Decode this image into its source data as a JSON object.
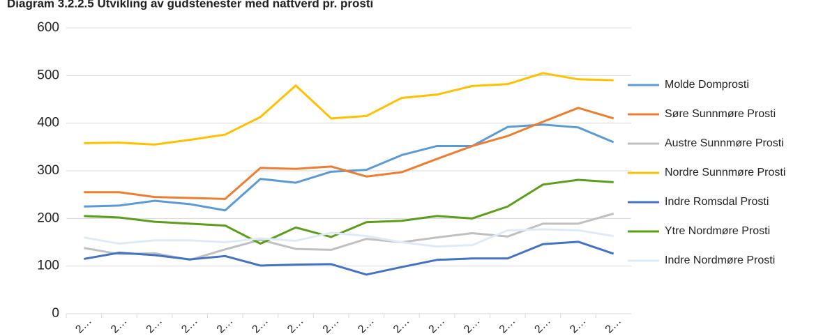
{
  "chart_data": {
    "type": "line",
    "title": "Diagram 3.2.2.5 Utvikling av gudstenester med nattverd pr. prosti",
    "categories": [
      "2…",
      "2…",
      "2…",
      "2…",
      "2…",
      "2…",
      "2…",
      "2…",
      "2…",
      "2…",
      "2…",
      "2…",
      "2…",
      "2…",
      "2…",
      "2…"
    ],
    "ylim": [
      0,
      600
    ],
    "yticks": [
      0,
      100,
      200,
      300,
      400,
      500,
      600
    ],
    "grid": true,
    "legend": "right",
    "series": [
      {
        "name": "Molde Domprosti",
        "color": "#5b9bd5",
        "values": [
          225,
          227,
          237,
          230,
          217,
          283,
          275,
          298,
          302,
          333,
          352,
          352,
          392,
          397,
          391,
          360
        ]
      },
      {
        "name": "Søre Sunnmøre Prosti",
        "color": "#ed7d31",
        "values": [
          255,
          255,
          245,
          243,
          241,
          306,
          304,
          309,
          288,
          297,
          325,
          352,
          373,
          403,
          432,
          410
        ]
      },
      {
        "name": "Austre Sunnmøre Prosti",
        "color": "#c0c0c0",
        "values": [
          138,
          125,
          127,
          113,
          135,
          155,
          136,
          134,
          157,
          150,
          160,
          169,
          162,
          189,
          189,
          210
        ]
      },
      {
        "name": "Nordre Sunnmøre Prosti",
        "color": "#ffc000",
        "values": [
          358,
          359,
          355,
          365,
          376,
          413,
          479,
          410,
          415,
          453,
          460,
          478,
          482,
          505,
          492,
          490
        ]
      },
      {
        "name": "Indre Romsdal Prosti",
        "color": "#4472c4",
        "values": [
          115,
          128,
          123,
          114,
          121,
          101,
          103,
          104,
          82,
          98,
          113,
          116,
          116,
          146,
          151,
          126
        ]
      },
      {
        "name": "Ytre Nordmøre Prosti",
        "color": "#5a9e1a",
        "values": [
          205,
          202,
          193,
          189,
          185,
          147,
          181,
          161,
          192,
          195,
          205,
          200,
          225,
          271,
          281,
          276
        ]
      },
      {
        "name": "Indre Nordmøre Prosti",
        "color": "#deebf7",
        "values": [
          160,
          147,
          154,
          154,
          150,
          158,
          153,
          170,
          163,
          150,
          141,
          144,
          175,
          177,
          175,
          163
        ]
      }
    ]
  }
}
